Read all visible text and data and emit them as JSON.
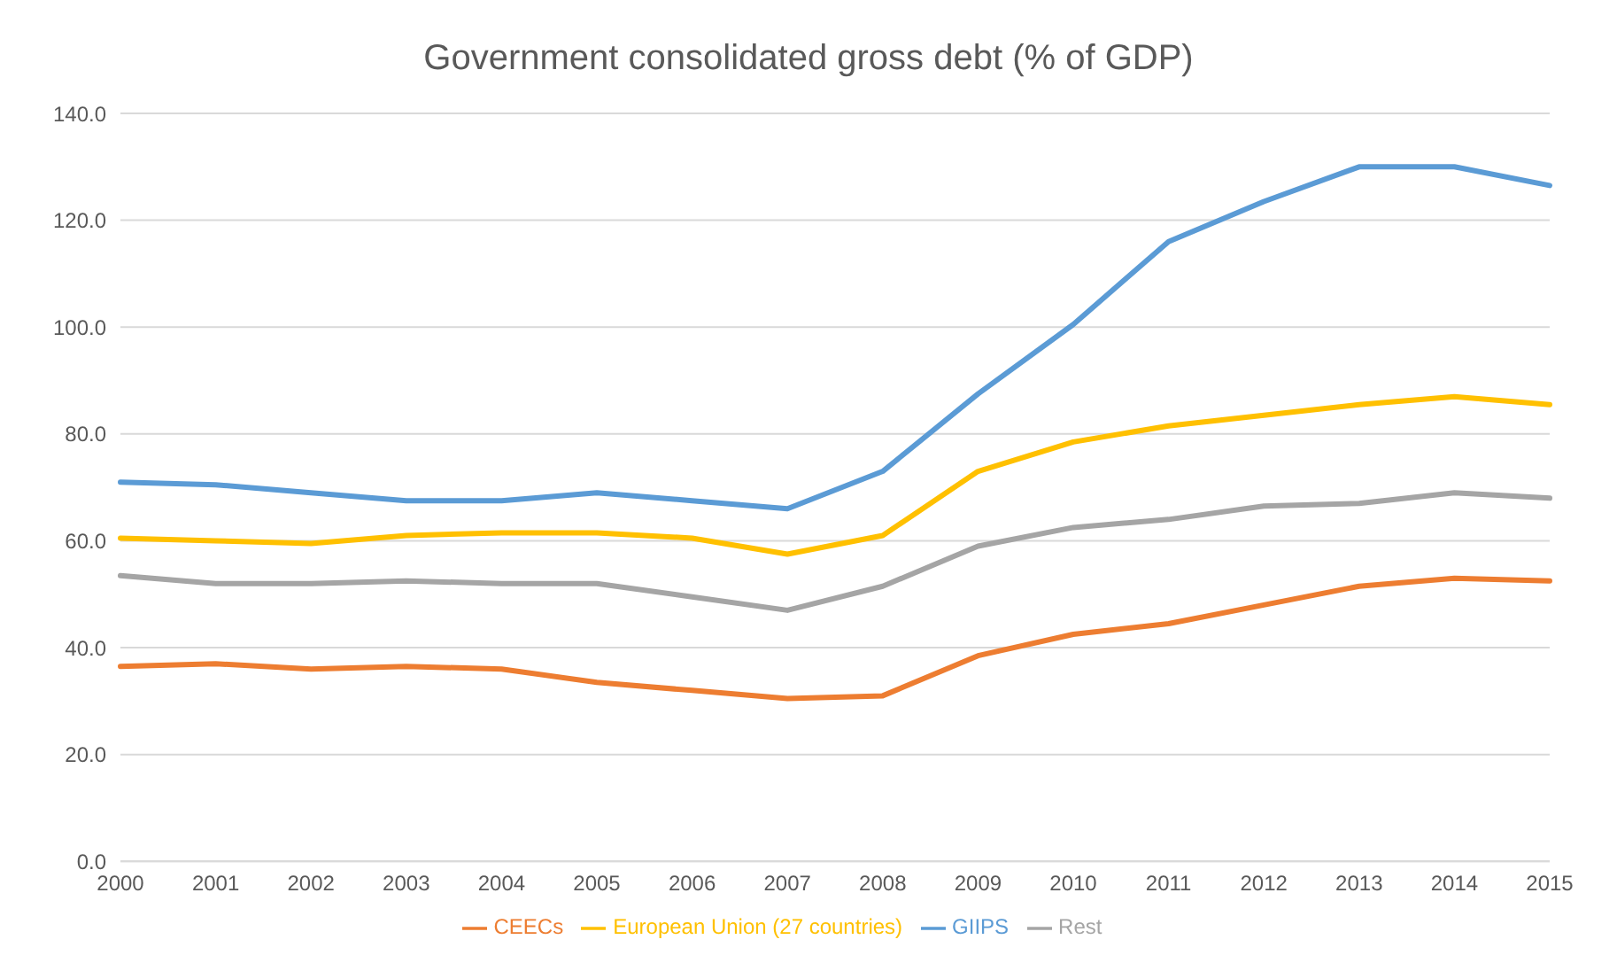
{
  "chart_data": {
    "type": "line",
    "title": "Government consolidated gross debt (% of GDP)",
    "categories": [
      "2000",
      "2001",
      "2002",
      "2003",
      "2004",
      "2005",
      "2006",
      "2007",
      "2008",
      "2009",
      "2010",
      "2011",
      "2012",
      "2013",
      "2014",
      "2015"
    ],
    "series": [
      {
        "name": "GIIPS",
        "color": "#5b9bd5",
        "values": [
          71,
          70.5,
          69,
          67.5,
          67.5,
          69,
          67.5,
          66,
          73,
          87.5,
          100.5,
          116,
          123.5,
          130,
          130,
          126.5
        ]
      },
      {
        "name": "CEECs",
        "color": "#ed7d31",
        "values": [
          36.5,
          37,
          36,
          36.5,
          36,
          33.5,
          32,
          30.5,
          31,
          38.5,
          42.5,
          44.5,
          48,
          51.5,
          53,
          52.5
        ]
      },
      {
        "name": "Rest",
        "color": "#a5a5a5",
        "values": [
          53.5,
          52,
          52,
          52.5,
          52,
          52,
          49.5,
          47,
          51.5,
          59,
          62.5,
          64,
          66.5,
          67,
          69,
          68
        ]
      },
      {
        "name": "European Union (27 countries)",
        "color": "#ffc000",
        "values": [
          60.5,
          60,
          59.5,
          61,
          61.5,
          61.5,
          60.5,
          57.5,
          61,
          73,
          78.5,
          81.5,
          83.5,
          85.5,
          87,
          85.5
        ]
      }
    ],
    "ylim": [
      0,
      140
    ],
    "yticks": [
      {
        "value": 0,
        "label": "0.0"
      },
      {
        "value": 20,
        "label": "20.0"
      },
      {
        "value": 40,
        "label": "40.0"
      },
      {
        "value": 60,
        "label": "60.0"
      },
      {
        "value": 80,
        "label": "80.0"
      },
      {
        "value": 100,
        "label": "100.0"
      },
      {
        "value": 120,
        "label": "120.0"
      },
      {
        "value": 140,
        "label": "140.0"
      }
    ],
    "grid": "y",
    "legend": "bottom",
    "marker": "none",
    "line_style": "solid"
  }
}
